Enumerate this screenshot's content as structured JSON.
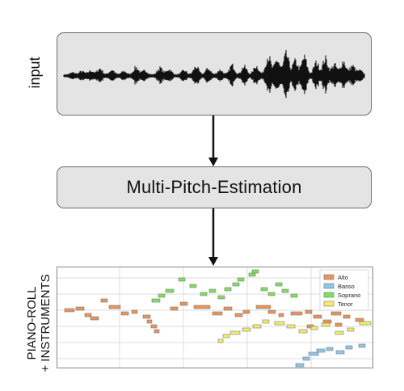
{
  "input_label": "input",
  "step_label": "Multi-Pitch-Estimation",
  "output_label_line1": "PIANO-ROLL",
  "output_label_line2": "+ INSTRUMENTS",
  "legend": [
    {
      "name": "Alto",
      "color": "#e8955a"
    },
    {
      "name": "Basso",
      "color": "#8fc6ec"
    },
    {
      "name": "Soprano",
      "color": "#7fe05c"
    },
    {
      "name": "Tenor",
      "color": "#f2ec6a"
    }
  ],
  "colors": {
    "box_fill": "#e4e4e4",
    "box_border": "#6d6d6d",
    "arrow": "#111111",
    "waveform": "#111111"
  }
}
